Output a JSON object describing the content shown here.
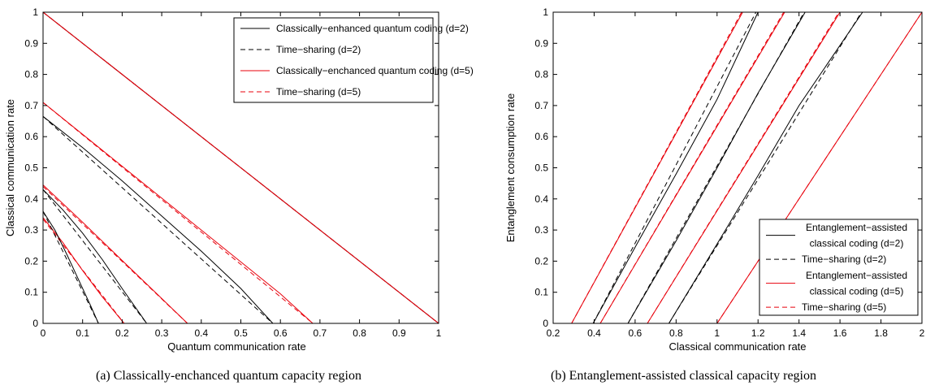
{
  "chart_data": [
    {
      "type": "line",
      "caption": "(a)  Classically-enchanced quantum capacity region",
      "xlabel": "Quantum communication rate",
      "ylabel": "Classical communication rate",
      "xlim": [
        0,
        1
      ],
      "ylim": [
        0,
        1
      ],
      "xticks": [
        0,
        0.1,
        0.2,
        0.3,
        0.4,
        0.5,
        0.6,
        0.7,
        0.8,
        0.9,
        1
      ],
      "yticks": [
        0,
        0.1,
        0.2,
        0.3,
        0.4,
        0.5,
        0.6,
        0.7,
        0.8,
        0.9,
        1
      ],
      "xticklabels": [
        "0",
        "0.1",
        "0.2",
        "0.3",
        "0.4",
        "0.5",
        "0.6",
        "0.7",
        "0.8",
        "0.9",
        "1"
      ],
      "yticklabels": [
        "0",
        "0.1",
        "0.2",
        "0.3",
        "0.4",
        "0.5",
        "0.6",
        "0.7",
        "0.8",
        "0.9",
        "1"
      ],
      "grid": false,
      "legend_position": "top-right",
      "legend": [
        {
          "label": "Classically−enhanced quantum coding (d=2)",
          "color": "#000000",
          "dash": "solid"
        },
        {
          "label": "Time−sharing (d=2)",
          "color": "#000000",
          "dash": "dashed"
        },
        {
          "label": "Classically−enchanced quantum coding (d=5)",
          "color": "#e8000b",
          "dash": "solid"
        },
        {
          "label": "Time−sharing (d=5)",
          "color": "#e8000b",
          "dash": "dashed"
        }
      ],
      "series": [
        {
          "group": 0,
          "color": "#000000",
          "dash": "solid",
          "x": [
            0,
            0.5,
            1.0
          ],
          "y": [
            1.0,
            0.5,
            0
          ]
        },
        {
          "group": 1,
          "color": "#000000",
          "dash": "dashed",
          "x": [
            0,
            1.0
          ],
          "y": [
            1.0,
            0
          ]
        },
        {
          "group": 2,
          "color": "#e8000b",
          "dash": "solid",
          "x": [
            0,
            0.5,
            1.0
          ],
          "y": [
            1.0,
            0.5,
            0
          ]
        },
        {
          "group": 3,
          "color": "#e8000b",
          "dash": "dashed",
          "x": [
            0,
            1.0
          ],
          "y": [
            1.0,
            0
          ]
        },
        {
          "group": 2,
          "color": "#e8000b",
          "dash": "solid",
          "x": [
            0,
            0.2,
            0.4,
            0.6,
            0.682
          ],
          "y": [
            0.71,
            0.505,
            0.3,
            0.095,
            0
          ]
        },
        {
          "group": 3,
          "color": "#e8000b",
          "dash": "dashed",
          "x": [
            0,
            0.682
          ],
          "y": [
            0.71,
            0
          ]
        },
        {
          "group": 0,
          "color": "#000000",
          "dash": "solid",
          "x": [
            0,
            0.1,
            0.2,
            0.3,
            0.4,
            0.5,
            0.581
          ],
          "y": [
            0.665,
            0.565,
            0.458,
            0.345,
            0.232,
            0.112,
            0
          ]
        },
        {
          "group": 1,
          "color": "#000000",
          "dash": "dashed",
          "x": [
            0,
            0.581
          ],
          "y": [
            0.665,
            0
          ]
        },
        {
          "group": 2,
          "color": "#e8000b",
          "dash": "solid",
          "x": [
            0,
            0.1,
            0.2,
            0.3,
            0.365
          ],
          "y": [
            0.445,
            0.325,
            0.202,
            0.08,
            0
          ]
        },
        {
          "group": 3,
          "color": "#e8000b",
          "dash": "dashed",
          "x": [
            0,
            0.365
          ],
          "y": [
            0.44,
            0
          ]
        },
        {
          "group": 0,
          "color": "#000000",
          "dash": "solid",
          "x": [
            0,
            0.05,
            0.1,
            0.15,
            0.2,
            0.262
          ],
          "y": [
            0.43,
            0.365,
            0.29,
            0.205,
            0.112,
            0
          ]
        },
        {
          "group": 1,
          "color": "#000000",
          "dash": "dashed",
          "x": [
            0,
            0.262
          ],
          "y": [
            0.43,
            0
          ]
        },
        {
          "group": 2,
          "color": "#e8000b",
          "dash": "solid",
          "x": [
            0,
            0.05,
            0.1,
            0.15,
            0.205
          ],
          "y": [
            0.34,
            0.26,
            0.17,
            0.085,
            0
          ]
        },
        {
          "group": 3,
          "color": "#e8000b",
          "dash": "dashed",
          "x": [
            0,
            0.205
          ],
          "y": [
            0.335,
            0
          ]
        },
        {
          "group": 0,
          "color": "#000000",
          "dash": "solid",
          "x": [
            0,
            0.03,
            0.06,
            0.09,
            0.12,
            0.14
          ],
          "y": [
            0.36,
            0.3,
            0.222,
            0.14,
            0.058,
            0
          ]
        },
        {
          "group": 1,
          "color": "#000000",
          "dash": "dashed",
          "x": [
            0,
            0.14
          ],
          "y": [
            0.36,
            0
          ]
        }
      ]
    },
    {
      "type": "line",
      "caption": "(b)  Entanglement-assisted classical capacity region",
      "xlabel": "Classical communication rate",
      "ylabel": "Entanglement consumption rate",
      "xlim": [
        0.2,
        2
      ],
      "ylim": [
        0,
        1
      ],
      "xticks": [
        0.2,
        0.4,
        0.6,
        0.8,
        1,
        1.2,
        1.4,
        1.6,
        1.8,
        2
      ],
      "yticks": [
        0,
        0.1,
        0.2,
        0.3,
        0.4,
        0.5,
        0.6,
        0.7,
        0.8,
        0.9,
        1
      ],
      "xticklabels": [
        "0.2",
        "0.4",
        "0.6",
        "0.8",
        "1",
        "1.2",
        "1.4",
        "1.6",
        "1.8",
        "2"
      ],
      "yticklabels": [
        "0",
        "0.1",
        "0.2",
        "0.3",
        "0.4",
        "0.5",
        "0.6",
        "0.7",
        "0.8",
        "0.9",
        "1"
      ],
      "grid": false,
      "legend_position": "bottom-right",
      "legend": [
        {
          "label": "Entanglement−assisted",
          "label2": "classical coding (d=2)",
          "color": "#000000",
          "dash": "solid"
        },
        {
          "label": "Time−sharing (d=2)",
          "color": "#000000",
          "dash": "dashed"
        },
        {
          "label": "Entanglement−assisted",
          "label2": "classical coding (d=5)",
          "color": "#e8000b",
          "dash": "solid"
        },
        {
          "label": "Time−sharing (d=5)",
          "color": "#e8000b",
          "dash": "dashed"
        }
      ],
      "series": [
        {
          "group": 2,
          "color": "#e8000b",
          "dash": "solid",
          "x": [
            0.29,
            1.125
          ],
          "y": [
            0,
            1
          ]
        },
        {
          "group": 3,
          "color": "#e8000b",
          "dash": "dashed",
          "x": [
            0.29,
            1.12
          ],
          "y": [
            0,
            1
          ]
        },
        {
          "group": 0,
          "color": "#000000",
          "dash": "solid",
          "x": [
            0.395,
            0.6,
            0.8,
            1.0,
            1.2
          ],
          "y": [
            0,
            0.245,
            0.48,
            0.72,
            1
          ]
        },
        {
          "group": 1,
          "color": "#000000",
          "dash": "dashed",
          "x": [
            0.395,
            1.19
          ],
          "y": [
            0,
            1
          ]
        },
        {
          "group": 2,
          "color": "#e8000b",
          "dash": "solid",
          "x": [
            0.43,
            1.33
          ],
          "y": [
            0,
            1
          ]
        },
        {
          "group": 3,
          "color": "#e8000b",
          "dash": "dashed",
          "x": [
            0.43,
            1.325
          ],
          "y": [
            0,
            1
          ]
        },
        {
          "group": 0,
          "color": "#000000",
          "dash": "solid",
          "x": [
            0.565,
            0.8,
            1.0,
            1.2,
            1.43
          ],
          "y": [
            0,
            0.265,
            0.5,
            0.74,
            1
          ]
        },
        {
          "group": 1,
          "color": "#000000",
          "dash": "dashed",
          "x": [
            0.565,
            1.425
          ],
          "y": [
            0,
            1
          ]
        },
        {
          "group": 2,
          "color": "#e8000b",
          "dash": "solid",
          "x": [
            0.66,
            1.6
          ],
          "y": [
            0,
            1
          ]
        },
        {
          "group": 3,
          "color": "#e8000b",
          "dash": "dashed",
          "x": [
            0.66,
            1.595
          ],
          "y": [
            0,
            1
          ]
        },
        {
          "group": 0,
          "color": "#000000",
          "dash": "solid",
          "x": [
            0.765,
            1.0,
            1.2,
            1.4,
            1.71
          ],
          "y": [
            0,
            0.255,
            0.475,
            0.7,
            1
          ]
        },
        {
          "group": 1,
          "color": "#000000",
          "dash": "dashed",
          "x": [
            0.765,
            1.705
          ],
          "y": [
            0,
            1
          ]
        },
        {
          "group": 2,
          "color": "#e8000b",
          "dash": "solid",
          "x": [
            1.0,
            2.0
          ],
          "y": [
            0,
            1
          ]
        },
        {
          "group": 3,
          "color": "#e8000b",
          "dash": "dashed",
          "x": [
            1.0,
            2.0
          ],
          "y": [
            0,
            1
          ]
        }
      ]
    }
  ]
}
